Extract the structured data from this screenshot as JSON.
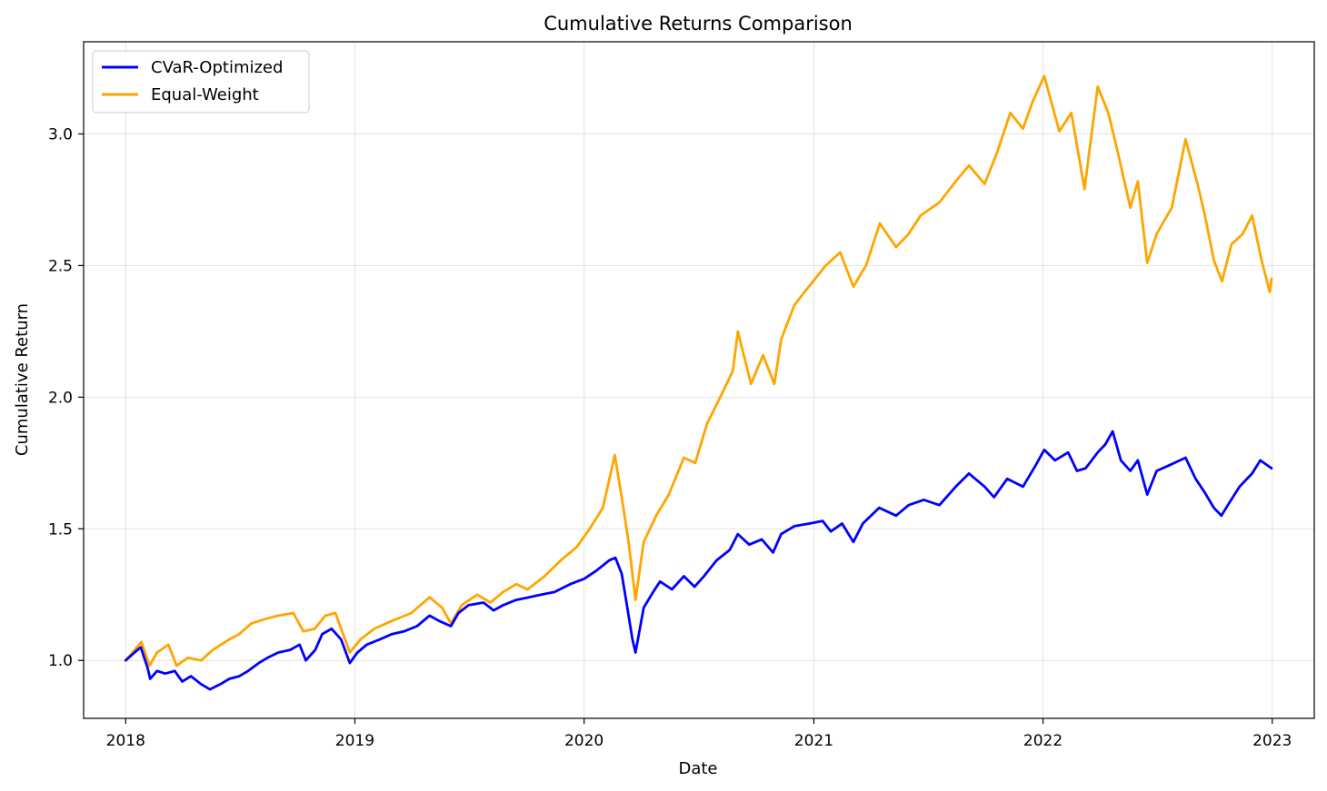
{
  "chart_data": {
    "type": "line",
    "title": "Cumulative Returns Comparison",
    "xlabel": "Date",
    "ylabel": "Cumulative Return",
    "xlim": [
      "2017-10-26",
      "2023-03-09"
    ],
    "ylim": [
      0.78,
      3.35
    ],
    "x_ticks": [
      "2018-01-01",
      "2019-01-01",
      "2020-01-01",
      "2021-01-01",
      "2022-01-01",
      "2023-01-01"
    ],
    "x_tick_labels": [
      "2018",
      "2019",
      "2020",
      "2021",
      "2022",
      "2023"
    ],
    "y_ticks": [
      1.0,
      1.5,
      2.0,
      2.5,
      3.0
    ],
    "y_tick_labels": [
      "1.0",
      "1.5",
      "2.0",
      "2.5",
      "3.0"
    ],
    "grid": true,
    "legend_position": "top-left",
    "series": [
      {
        "name": "CVaR-Optimized",
        "color": "#0000ff",
        "points": [
          [
            "2018-01-01",
            1.0
          ],
          [
            "2018-01-15",
            1.03
          ],
          [
            "2018-01-25",
            1.05
          ],
          [
            "2018-02-05",
            0.97
          ],
          [
            "2018-02-09",
            0.93
          ],
          [
            "2018-02-20",
            0.96
          ],
          [
            "2018-03-05",
            0.95
          ],
          [
            "2018-03-20",
            0.96
          ],
          [
            "2018-04-01",
            0.92
          ],
          [
            "2018-04-15",
            0.94
          ],
          [
            "2018-05-01",
            0.91
          ],
          [
            "2018-05-15",
            0.89
          ],
          [
            "2018-06-01",
            0.91
          ],
          [
            "2018-06-15",
            0.93
          ],
          [
            "2018-07-01",
            0.94
          ],
          [
            "2018-07-15",
            0.96
          ],
          [
            "2018-08-01",
            0.99
          ],
          [
            "2018-08-15",
            1.01
          ],
          [
            "2018-09-01",
            1.03
          ],
          [
            "2018-09-20",
            1.04
          ],
          [
            "2018-10-05",
            1.06
          ],
          [
            "2018-10-15",
            1.0
          ],
          [
            "2018-10-30",
            1.04
          ],
          [
            "2018-11-10",
            1.1
          ],
          [
            "2018-11-25",
            1.12
          ],
          [
            "2018-12-10",
            1.08
          ],
          [
            "2018-12-24",
            0.99
          ],
          [
            "2019-01-05",
            1.03
          ],
          [
            "2019-01-20",
            1.06
          ],
          [
            "2019-02-10",
            1.08
          ],
          [
            "2019-03-01",
            1.1
          ],
          [
            "2019-03-20",
            1.11
          ],
          [
            "2019-04-10",
            1.13
          ],
          [
            "2019-04-30",
            1.17
          ],
          [
            "2019-05-15",
            1.15
          ],
          [
            "2019-06-03",
            1.13
          ],
          [
            "2019-06-15",
            1.18
          ],
          [
            "2019-07-01",
            1.21
          ],
          [
            "2019-07-25",
            1.22
          ],
          [
            "2019-08-10",
            1.19
          ],
          [
            "2019-08-25",
            1.21
          ],
          [
            "2019-09-15",
            1.23
          ],
          [
            "2019-10-05",
            1.24
          ],
          [
            "2019-10-25",
            1.25
          ],
          [
            "2019-11-15",
            1.26
          ],
          [
            "2019-12-10",
            1.29
          ],
          [
            "2020-01-01",
            1.31
          ],
          [
            "2020-01-20",
            1.34
          ],
          [
            "2020-02-10",
            1.38
          ],
          [
            "2020-02-20",
            1.39
          ],
          [
            "2020-03-01",
            1.33
          ],
          [
            "2020-03-10",
            1.2
          ],
          [
            "2020-03-18",
            1.08
          ],
          [
            "2020-03-23",
            1.03
          ],
          [
            "2020-04-05",
            1.2
          ],
          [
            "2020-04-20",
            1.26
          ],
          [
            "2020-05-01",
            1.3
          ],
          [
            "2020-05-20",
            1.27
          ],
          [
            "2020-06-08",
            1.32
          ],
          [
            "2020-06-25",
            1.28
          ],
          [
            "2020-07-10",
            1.32
          ],
          [
            "2020-07-30",
            1.38
          ],
          [
            "2020-08-20",
            1.42
          ],
          [
            "2020-09-02",
            1.48
          ],
          [
            "2020-09-20",
            1.44
          ],
          [
            "2020-10-10",
            1.46
          ],
          [
            "2020-10-28",
            1.41
          ],
          [
            "2020-11-10",
            1.48
          ],
          [
            "2020-12-01",
            1.51
          ],
          [
            "2020-12-25",
            1.52
          ],
          [
            "2021-01-15",
            1.53
          ],
          [
            "2021-01-28",
            1.49
          ],
          [
            "2021-02-15",
            1.52
          ],
          [
            "2021-03-05",
            1.45
          ],
          [
            "2021-03-20",
            1.52
          ],
          [
            "2021-04-15",
            1.58
          ],
          [
            "2021-05-12",
            1.55
          ],
          [
            "2021-06-01",
            1.59
          ],
          [
            "2021-06-25",
            1.61
          ],
          [
            "2021-07-20",
            1.59
          ],
          [
            "2021-08-15",
            1.66
          ],
          [
            "2021-09-05",
            1.71
          ],
          [
            "2021-09-30",
            1.66
          ],
          [
            "2021-10-15",
            1.62
          ],
          [
            "2021-11-05",
            1.69
          ],
          [
            "2021-11-30",
            1.66
          ],
          [
            "2021-12-20",
            1.74
          ],
          [
            "2022-01-03",
            1.8
          ],
          [
            "2022-01-20",
            1.76
          ],
          [
            "2022-02-10",
            1.79
          ],
          [
            "2022-02-24",
            1.72
          ],
          [
            "2022-03-10",
            1.73
          ],
          [
            "2022-03-29",
            1.79
          ],
          [
            "2022-04-10",
            1.82
          ],
          [
            "2022-04-22",
            1.87
          ],
          [
            "2022-05-05",
            1.76
          ],
          [
            "2022-05-20",
            1.72
          ],
          [
            "2022-06-01",
            1.76
          ],
          [
            "2022-06-16",
            1.63
          ],
          [
            "2022-07-01",
            1.72
          ],
          [
            "2022-07-20",
            1.74
          ],
          [
            "2022-08-16",
            1.77
          ],
          [
            "2022-09-01",
            1.69
          ],
          [
            "2022-09-15",
            1.64
          ],
          [
            "2022-09-30",
            1.58
          ],
          [
            "2022-10-12",
            1.55
          ],
          [
            "2022-10-25",
            1.6
          ],
          [
            "2022-11-10",
            1.66
          ],
          [
            "2022-11-30",
            1.71
          ],
          [
            "2022-12-13",
            1.76
          ],
          [
            "2022-12-31",
            1.73
          ]
        ]
      },
      {
        "name": "Equal-Weight",
        "color": "#ffa500",
        "points": [
          [
            "2018-01-01",
            1.0
          ],
          [
            "2018-01-15",
            1.04
          ],
          [
            "2018-01-26",
            1.07
          ],
          [
            "2018-02-08",
            0.98
          ],
          [
            "2018-02-20",
            1.03
          ],
          [
            "2018-03-10",
            1.06
          ],
          [
            "2018-03-23",
            0.98
          ],
          [
            "2018-04-10",
            1.01
          ],
          [
            "2018-05-01",
            1.0
          ],
          [
            "2018-05-20",
            1.04
          ],
          [
            "2018-06-15",
            1.08
          ],
          [
            "2018-07-01",
            1.1
          ],
          [
            "2018-07-20",
            1.14
          ],
          [
            "2018-08-15",
            1.16
          ],
          [
            "2018-09-01",
            1.17
          ],
          [
            "2018-09-25",
            1.18
          ],
          [
            "2018-10-11",
            1.11
          ],
          [
            "2018-10-29",
            1.12
          ],
          [
            "2018-11-15",
            1.17
          ],
          [
            "2018-12-01",
            1.18
          ],
          [
            "2018-12-24",
            1.03
          ],
          [
            "2019-01-10",
            1.08
          ],
          [
            "2019-02-01",
            1.12
          ],
          [
            "2019-03-01",
            1.15
          ],
          [
            "2019-04-01",
            1.18
          ],
          [
            "2019-04-30",
            1.24
          ],
          [
            "2019-05-20",
            1.2
          ],
          [
            "2019-06-03",
            1.14
          ],
          [
            "2019-06-20",
            1.21
          ],
          [
            "2019-07-15",
            1.25
          ],
          [
            "2019-08-05",
            1.22
          ],
          [
            "2019-08-25",
            1.26
          ],
          [
            "2019-09-15",
            1.29
          ],
          [
            "2019-10-03",
            1.27
          ],
          [
            "2019-10-30",
            1.32
          ],
          [
            "2019-11-25",
            1.38
          ],
          [
            "2019-12-20",
            1.43
          ],
          [
            "2020-01-10",
            1.5
          ],
          [
            "2020-01-31",
            1.58
          ],
          [
            "2020-02-19",
            1.78
          ],
          [
            "2020-03-01",
            1.62
          ],
          [
            "2020-03-12",
            1.45
          ],
          [
            "2020-03-23",
            1.23
          ],
          [
            "2020-04-05",
            1.45
          ],
          [
            "2020-04-25",
            1.55
          ],
          [
            "2020-05-15",
            1.63
          ],
          [
            "2020-06-08",
            1.77
          ],
          [
            "2020-06-26",
            1.75
          ],
          [
            "2020-07-15",
            1.9
          ],
          [
            "2020-08-05",
            2.0
          ],
          [
            "2020-08-25",
            2.1
          ],
          [
            "2020-09-02",
            2.25
          ],
          [
            "2020-09-23",
            2.05
          ],
          [
            "2020-10-12",
            2.16
          ],
          [
            "2020-10-30",
            2.05
          ],
          [
            "2020-11-10",
            2.22
          ],
          [
            "2020-12-01",
            2.35
          ],
          [
            "2020-12-24",
            2.42
          ],
          [
            "2021-01-20",
            2.5
          ],
          [
            "2021-02-12",
            2.55
          ],
          [
            "2021-03-05",
            2.42
          ],
          [
            "2021-03-25",
            2.5
          ],
          [
            "2021-04-16",
            2.66
          ],
          [
            "2021-05-12",
            2.57
          ],
          [
            "2021-06-01",
            2.62
          ],
          [
            "2021-06-20",
            2.69
          ],
          [
            "2021-07-20",
            2.74
          ],
          [
            "2021-08-15",
            2.82
          ],
          [
            "2021-09-05",
            2.88
          ],
          [
            "2021-09-30",
            2.81
          ],
          [
            "2021-10-20",
            2.93
          ],
          [
            "2021-11-10",
            3.08
          ],
          [
            "2021-11-30",
            3.02
          ],
          [
            "2021-12-15",
            3.12
          ],
          [
            "2022-01-03",
            3.22
          ],
          [
            "2022-01-27",
            3.01
          ],
          [
            "2022-02-15",
            3.08
          ],
          [
            "2022-03-08",
            2.79
          ],
          [
            "2022-03-29",
            3.18
          ],
          [
            "2022-04-15",
            3.08
          ],
          [
            "2022-05-01",
            2.92
          ],
          [
            "2022-05-20",
            2.72
          ],
          [
            "2022-06-01",
            2.82
          ],
          [
            "2022-06-16",
            2.51
          ],
          [
            "2022-07-01",
            2.62
          ],
          [
            "2022-07-25",
            2.72
          ],
          [
            "2022-08-16",
            2.98
          ],
          [
            "2022-09-05",
            2.8
          ],
          [
            "2022-09-15",
            2.7
          ],
          [
            "2022-09-30",
            2.52
          ],
          [
            "2022-10-13",
            2.44
          ],
          [
            "2022-10-28",
            2.58
          ],
          [
            "2022-11-15",
            2.62
          ],
          [
            "2022-11-30",
            2.69
          ],
          [
            "2022-12-15",
            2.52
          ],
          [
            "2022-12-28",
            2.4
          ],
          [
            "2022-12-31",
            2.45
          ]
        ]
      }
    ]
  }
}
